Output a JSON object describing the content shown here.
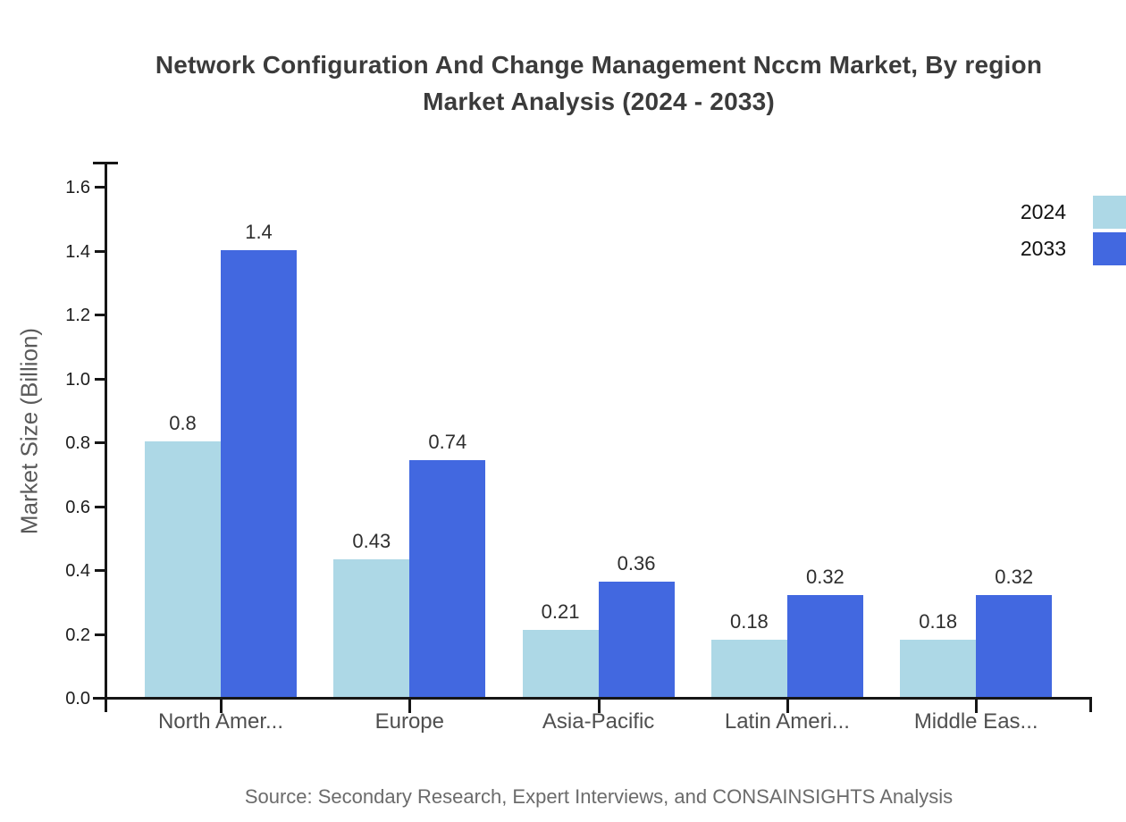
{
  "title": {
    "line1": "Network Configuration And Change Management Nccm Market, By region",
    "line2": "Market Analysis (2024 - 2033)"
  },
  "source": "Source: Secondary Research, Expert Interviews, and CONSAINSIGHTS Analysis",
  "chart_data": {
    "type": "bar",
    "title": "Network Configuration And Change Management Nccm Market, By region Market Analysis (2024 - 2033)",
    "xlabel": "",
    "ylabel": "Market Size (Billion)",
    "categories": [
      "North Amer...",
      "Europe",
      "Asia-Pacific",
      "Latin Ameri...",
      "Middle Eas..."
    ],
    "series": [
      {
        "name": "2024",
        "color": "#ADD8E6",
        "values": [
          0.8,
          0.43,
          0.21,
          0.18,
          0.18
        ]
      },
      {
        "name": "2033",
        "color": "#4268E0",
        "values": [
          1.4,
          0.74,
          0.36,
          0.32,
          0.32
        ]
      }
    ],
    "ylim": [
      0,
      1.6
    ],
    "yticks": [
      "0.0",
      "0.2",
      "0.4",
      "0.6",
      "0.8",
      "1.0",
      "1.2",
      "1.4",
      "1.6"
    ],
    "grid": false,
    "legend_position": "top-right",
    "value_labels_shown": true
  }
}
